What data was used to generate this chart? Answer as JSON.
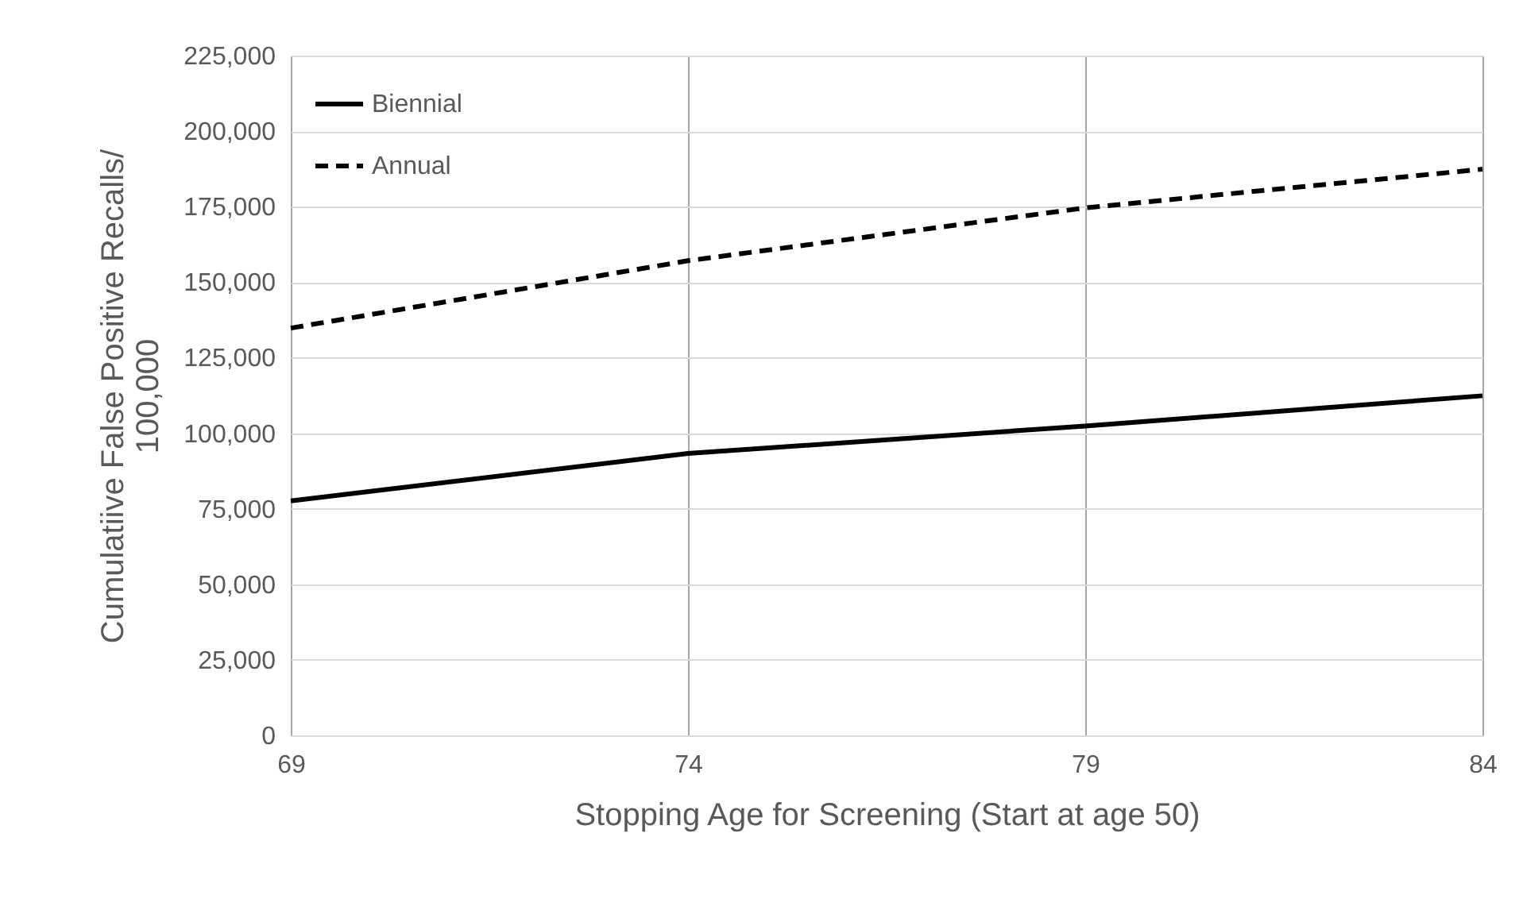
{
  "chart_data": {
    "type": "line",
    "xlabel": "Stopping Age for Screening (Start at age 50)",
    "ylabel": "Cumulatiive False Positive Recalls/ 100,000",
    "x": [
      69,
      74,
      79,
      84
    ],
    "xlim": [
      69,
      84
    ],
    "xticks": [
      69,
      74,
      79,
      84
    ],
    "ylim": [
      0,
      225000
    ],
    "yticks": [
      0,
      {
        "value": 25000,
        "label": "25,000"
      },
      {
        "value": 50000,
        "label": "50,000"
      },
      {
        "value": 75000,
        "label": "75,000"
      },
      {
        "value": 100000,
        "label": "100,000"
      },
      {
        "value": 125000,
        "label": "125,000"
      },
      {
        "value": 150000,
        "label": "150,000"
      },
      {
        "value": 175000,
        "label": "175,000"
      },
      {
        "value": 200000,
        "label": "200,000"
      },
      {
        "value": 225000,
        "label": "225,000"
      }
    ],
    "grid": true,
    "legend": "top left",
    "marker": "none",
    "series": [
      {
        "name": "Biennial",
        "color": "#000000",
        "line_style": "solid",
        "values": [
          77600,
          93300,
          102400,
          112400
        ]
      },
      {
        "name": "Annual",
        "color": "#000000",
        "line_style": "dashed",
        "values": [
          134800,
          157100,
          174600,
          187400
        ]
      }
    ]
  }
}
